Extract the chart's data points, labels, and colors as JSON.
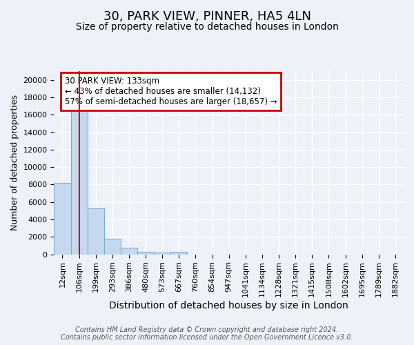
{
  "title": "30, PARK VIEW, PINNER, HA5 4LN",
  "subtitle": "Size of property relative to detached houses in London",
  "xlabel": "Distribution of detached houses by size in London",
  "ylabel": "Number of detached properties",
  "categories": [
    "12sqm",
    "106sqm",
    "199sqm",
    "293sqm",
    "386sqm",
    "480sqm",
    "573sqm",
    "667sqm",
    "760sqm",
    "854sqm",
    "947sqm",
    "1041sqm",
    "1134sqm",
    "1228sqm",
    "1321sqm",
    "1415sqm",
    "1508sqm",
    "1602sqm",
    "1695sqm",
    "1789sqm",
    "1882sqm"
  ],
  "values": [
    8200,
    16600,
    5300,
    1800,
    750,
    290,
    200,
    280,
    0,
    0,
    0,
    0,
    0,
    0,
    0,
    0,
    0,
    0,
    0,
    0,
    0
  ],
  "bar_color": "#c5d8ee",
  "bar_edge_color": "#7aafd4",
  "red_line_x": 1,
  "annotation_text": "30 PARK VIEW: 133sqm\n← 43% of detached houses are smaller (14,132)\n57% of semi-detached houses are larger (18,657) →",
  "annotation_box_color": "white",
  "annotation_box_edge": "#cc0000",
  "ylim": [
    0,
    21000
  ],
  "yticks": [
    0,
    2000,
    4000,
    6000,
    8000,
    10000,
    12000,
    14000,
    16000,
    18000,
    20000
  ],
  "footer_line1": "Contains HM Land Registry data © Crown copyright and database right 2024.",
  "footer_line2": "Contains public sector information licensed under the Open Government Licence v3.0.",
  "bg_color": "#eef2f8",
  "grid_color": "white",
  "title_fontsize": 13,
  "subtitle_fontsize": 10,
  "ylabel_fontsize": 9,
  "xlabel_fontsize": 10,
  "tick_fontsize": 8,
  "annot_fontsize": 8.5,
  "footer_fontsize": 7
}
